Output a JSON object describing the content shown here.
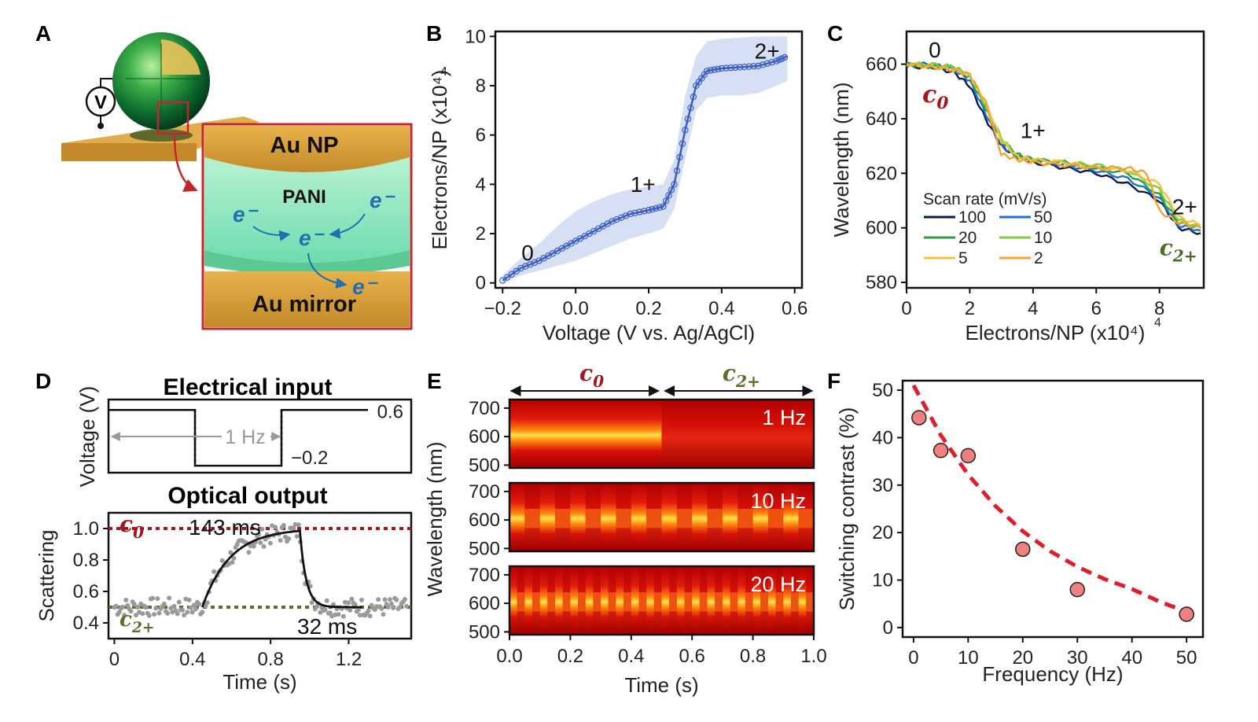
{
  "panels": {
    "A": {
      "letter": "A",
      "labels": {
        "voltmeter": "V",
        "au_np": "Au NP",
        "pani": "PANI",
        "electron": "e⁻",
        "au_mirror": "Au mirror"
      },
      "colors": {
        "gold": "#d9a440",
        "pani": "#7fe3b8",
        "frame": "#c0262b",
        "electron": "#1f6fb2"
      }
    },
    "B": {
      "letter": "B",
      "annotations": [
        "0",
        "1+",
        "2+"
      ]
    },
    "C": {
      "letter": "C",
      "annotations": [
        "0",
        "1+",
        "2+"
      ],
      "c0": "c",
      "c0_sub": "0",
      "c2": "c",
      "c2_sub": "2+"
    },
    "D": {
      "letter": "D",
      "top_title": "Electrical input",
      "bottom_title": "Optical output",
      "freq_label": "1 Hz",
      "v_high": "0.6",
      "v_low": "−0.2",
      "rise_label": "143 ms",
      "fall_label": "32 ms",
      "c0": "c",
      "c0_sub": "0",
      "c2": "c",
      "c2_sub": "2+"
    },
    "E": {
      "letter": "E",
      "c0": "c",
      "c0_sub": "0",
      "c2": "c",
      "c2_sub": "2+",
      "freqs": [
        "1 Hz",
        "10 Hz",
        "20 Hz"
      ]
    },
    "F": {
      "letter": "F"
    }
  },
  "chart_data": [
    {
      "id": "B",
      "type": "line",
      "title": "",
      "xlabel": "Voltage (V vs. Ag/AgCl)",
      "ylabel": "Electrons/NP (x10⁴)",
      "xlim": [
        -0.22,
        0.62
      ],
      "ylim": [
        -0.2,
        10.2
      ],
      "xticks": [
        "−0.2",
        "0.0",
        "0.2",
        "0.4",
        "0.6"
      ],
      "xtick_values": [
        -0.2,
        0.0,
        0.2,
        0.4,
        0.6
      ],
      "yticks": [
        "0",
        "2",
        "4",
        "6",
        "8",
        "10"
      ],
      "ytick_values": [
        0,
        2,
        4,
        6,
        8,
        10
      ],
      "x": [
        -0.2,
        -0.15,
        -0.1,
        -0.05,
        0.0,
        0.05,
        0.1,
        0.15,
        0.2,
        0.24,
        0.27,
        0.3,
        0.33,
        0.36,
        0.4,
        0.45,
        0.5,
        0.55,
        0.58
      ],
      "y": [
        0.1,
        0.6,
        0.9,
        1.3,
        1.7,
        2.1,
        2.5,
        2.8,
        2.95,
        3.1,
        4.0,
        6.2,
        8.0,
        8.6,
        8.7,
        8.75,
        8.8,
        9.0,
        9.2
      ],
      "band_low": [
        0.0,
        0.3,
        0.5,
        0.7,
        0.9,
        1.2,
        1.5,
        1.8,
        2.0,
        2.2,
        3.0,
        5.0,
        7.0,
        7.5,
        7.6,
        7.6,
        7.7,
        8.0,
        8.2
      ],
      "band_high": [
        0.3,
        1.0,
        1.6,
        2.3,
        2.9,
        3.3,
        3.6,
        3.8,
        3.9,
        4.0,
        5.0,
        7.6,
        9.2,
        9.8,
        9.9,
        9.95,
        10.0,
        10.0,
        10.0
      ],
      "series_color": "#3a5fc4",
      "band_color": "#c9d4f2"
    },
    {
      "id": "C",
      "type": "line",
      "title": "",
      "xlabel": "Electrons/NP (x10⁴)",
      "ylabel": "Wavelength (nm)",
      "xlim": [
        0,
        9.4
      ],
      "ylim": [
        578,
        672
      ],
      "xticks": [
        "0",
        "2",
        "4",
        "6",
        "8"
      ],
      "xtick_values": [
        0,
        2,
        4,
        6,
        8
      ],
      "yticks": [
        "580",
        "600",
        "620",
        "640",
        "660"
      ],
      "ytick_values": [
        580,
        600,
        620,
        640,
        660
      ],
      "legend_title": "Scan rate (mV/s)",
      "legend_position": "lower-left",
      "series": [
        {
          "name": "100",
          "color": "#0d1b4f",
          "x": [
            0,
            0.8,
            1.5,
            2.0,
            2.5,
            3.0,
            3.5,
            4.0,
            5.0,
            6.0,
            7.0,
            8.0,
            8.6,
            9.3
          ],
          "y": [
            659,
            659,
            657,
            652,
            640,
            630,
            626,
            624,
            622,
            620,
            616,
            610,
            600,
            598
          ]
        },
        {
          "name": "50",
          "color": "#1f6fd1",
          "x": [
            0,
            0.8,
            1.5,
            2.0,
            2.5,
            3.0,
            3.5,
            4.0,
            5.0,
            6.0,
            7.0,
            8.0,
            8.6,
            9.3
          ],
          "y": [
            660,
            660,
            658,
            654,
            642,
            630,
            626,
            625,
            623,
            621,
            618,
            611,
            601,
            599
          ]
        },
        {
          "name": "20",
          "color": "#2e9e45",
          "x": [
            0,
            0.8,
            1.5,
            2.0,
            2.5,
            3.0,
            3.5,
            4.0,
            5.0,
            6.0,
            7.0,
            8.0,
            8.6,
            9.3
          ],
          "y": [
            660,
            659,
            659,
            655,
            644,
            632,
            627,
            625,
            624,
            622,
            620,
            612,
            602,
            600
          ]
        },
        {
          "name": "10",
          "color": "#7ccf3e",
          "x": [
            0,
            0.8,
            1.5,
            2.0,
            2.5,
            3.0,
            3.5,
            4.0,
            5.0,
            6.0,
            7.0,
            8.0,
            8.6,
            9.3
          ],
          "y": [
            660,
            660,
            659,
            656,
            645,
            633,
            626,
            625,
            624,
            623,
            621,
            614,
            603,
            600
          ]
        },
        {
          "name": "5",
          "color": "#f2c43a",
          "x": [
            0,
            0.8,
            1.5,
            2.0,
            2.5,
            3.0,
            3.5,
            4.0,
            5.0,
            6.0,
            7.0,
            8.0,
            8.6,
            9.3
          ],
          "y": [
            660,
            659,
            658,
            656,
            646,
            632,
            626,
            625,
            624,
            622,
            621,
            616,
            604,
            601
          ]
        },
        {
          "name": "2",
          "color": "#f2a230",
          "x": [
            0,
            0.8,
            1.5,
            2.0,
            2.5,
            3.0,
            3.5,
            4.0,
            5.0,
            6.0,
            7.0,
            7.6,
            8.0,
            8.6,
            9.3
          ],
          "y": [
            660,
            659,
            658,
            656,
            646,
            627,
            625,
            624,
            623,
            622,
            622,
            620,
            606,
            602,
            600
          ]
        }
      ]
    },
    {
      "id": "D_top",
      "type": "line",
      "title": "Electrical input",
      "xlabel": "",
      "ylabel": "Voltage (V)",
      "x": [
        0,
        0.5,
        0.5,
        1.0,
        1.0,
        1.5
      ],
      "y": [
        0.6,
        0.6,
        -0.2,
        -0.2,
        0.6,
        0.6
      ]
    },
    {
      "id": "D_bottom",
      "type": "scatter",
      "title": "Optical output",
      "xlabel": "Time (s)",
      "ylabel": "Scattering",
      "xlim": [
        -0.03,
        1.52
      ],
      "ylim": [
        0.3,
        1.1
      ],
      "xticks": [
        "0",
        "0.4",
        "0.8",
        "1.2"
      ],
      "xtick_values": [
        0,
        0.4,
        0.8,
        1.2
      ],
      "yticks": [
        "0.4",
        "0.6",
        "0.8",
        "1.0"
      ],
      "ytick_values": [
        0.4,
        0.6,
        0.8,
        1.0
      ],
      "c0_level": 1.0,
      "c2_level": 0.5,
      "rise_start": 0.45,
      "rise_tau_ms": 143,
      "fall_start": 0.95,
      "fall_tau_ms": 32,
      "fit_color": "#111111",
      "point_color": "#9a9a9a"
    },
    {
      "id": "E",
      "type": "heatmap",
      "xlabel": "Time (s)",
      "ylabel": "Wavelength (nm)",
      "xlim": [
        0,
        1.0
      ],
      "ylim": [
        490,
        730
      ],
      "xticks": [
        "0.0",
        "0.2",
        "0.4",
        "0.6",
        "0.8",
        "1.0"
      ],
      "xtick_values": [
        0,
        0.2,
        0.4,
        0.6,
        0.8,
        1.0
      ],
      "yticks": [
        "500",
        "600",
        "700"
      ],
      "ytick_values": [
        500,
        600,
        700
      ],
      "rows": [
        {
          "label": "1 Hz",
          "switch_periods": 1
        },
        {
          "label": "10 Hz",
          "switch_periods": 10
        },
        {
          "label": "20 Hz",
          "switch_periods": 20
        }
      ]
    },
    {
      "id": "F",
      "type": "scatter",
      "xlabel": "Frequency (Hz)",
      "ylabel": "Switching contrast (%)",
      "xlim": [
        -2,
        53
      ],
      "ylim": [
        -2,
        52
      ],
      "xticks": [
        "0",
        "10",
        "20",
        "30",
        "40",
        "50"
      ],
      "xtick_values": [
        0,
        10,
        20,
        30,
        40,
        50
      ],
      "yticks": [
        "0",
        "10",
        "20",
        "30",
        "40",
        "50"
      ],
      "ytick_values": [
        0,
        10,
        20,
        30,
        40,
        50
      ],
      "x": [
        1,
        5,
        10,
        20,
        30,
        50
      ],
      "y": [
        44.2,
        37.3,
        36.2,
        16.5,
        8.0,
        2.8
      ],
      "fit_x": [
        0,
        5,
        10,
        15,
        20,
        25,
        30,
        35,
        40,
        45,
        50
      ],
      "fit_y": [
        51,
        40.5,
        32.2,
        25.6,
        20.3,
        16.1,
        12.8,
        10.2,
        8.1,
        5.5,
        3.3
      ],
      "point_color": "#f08080",
      "fit_color": "#e01e2b"
    }
  ]
}
